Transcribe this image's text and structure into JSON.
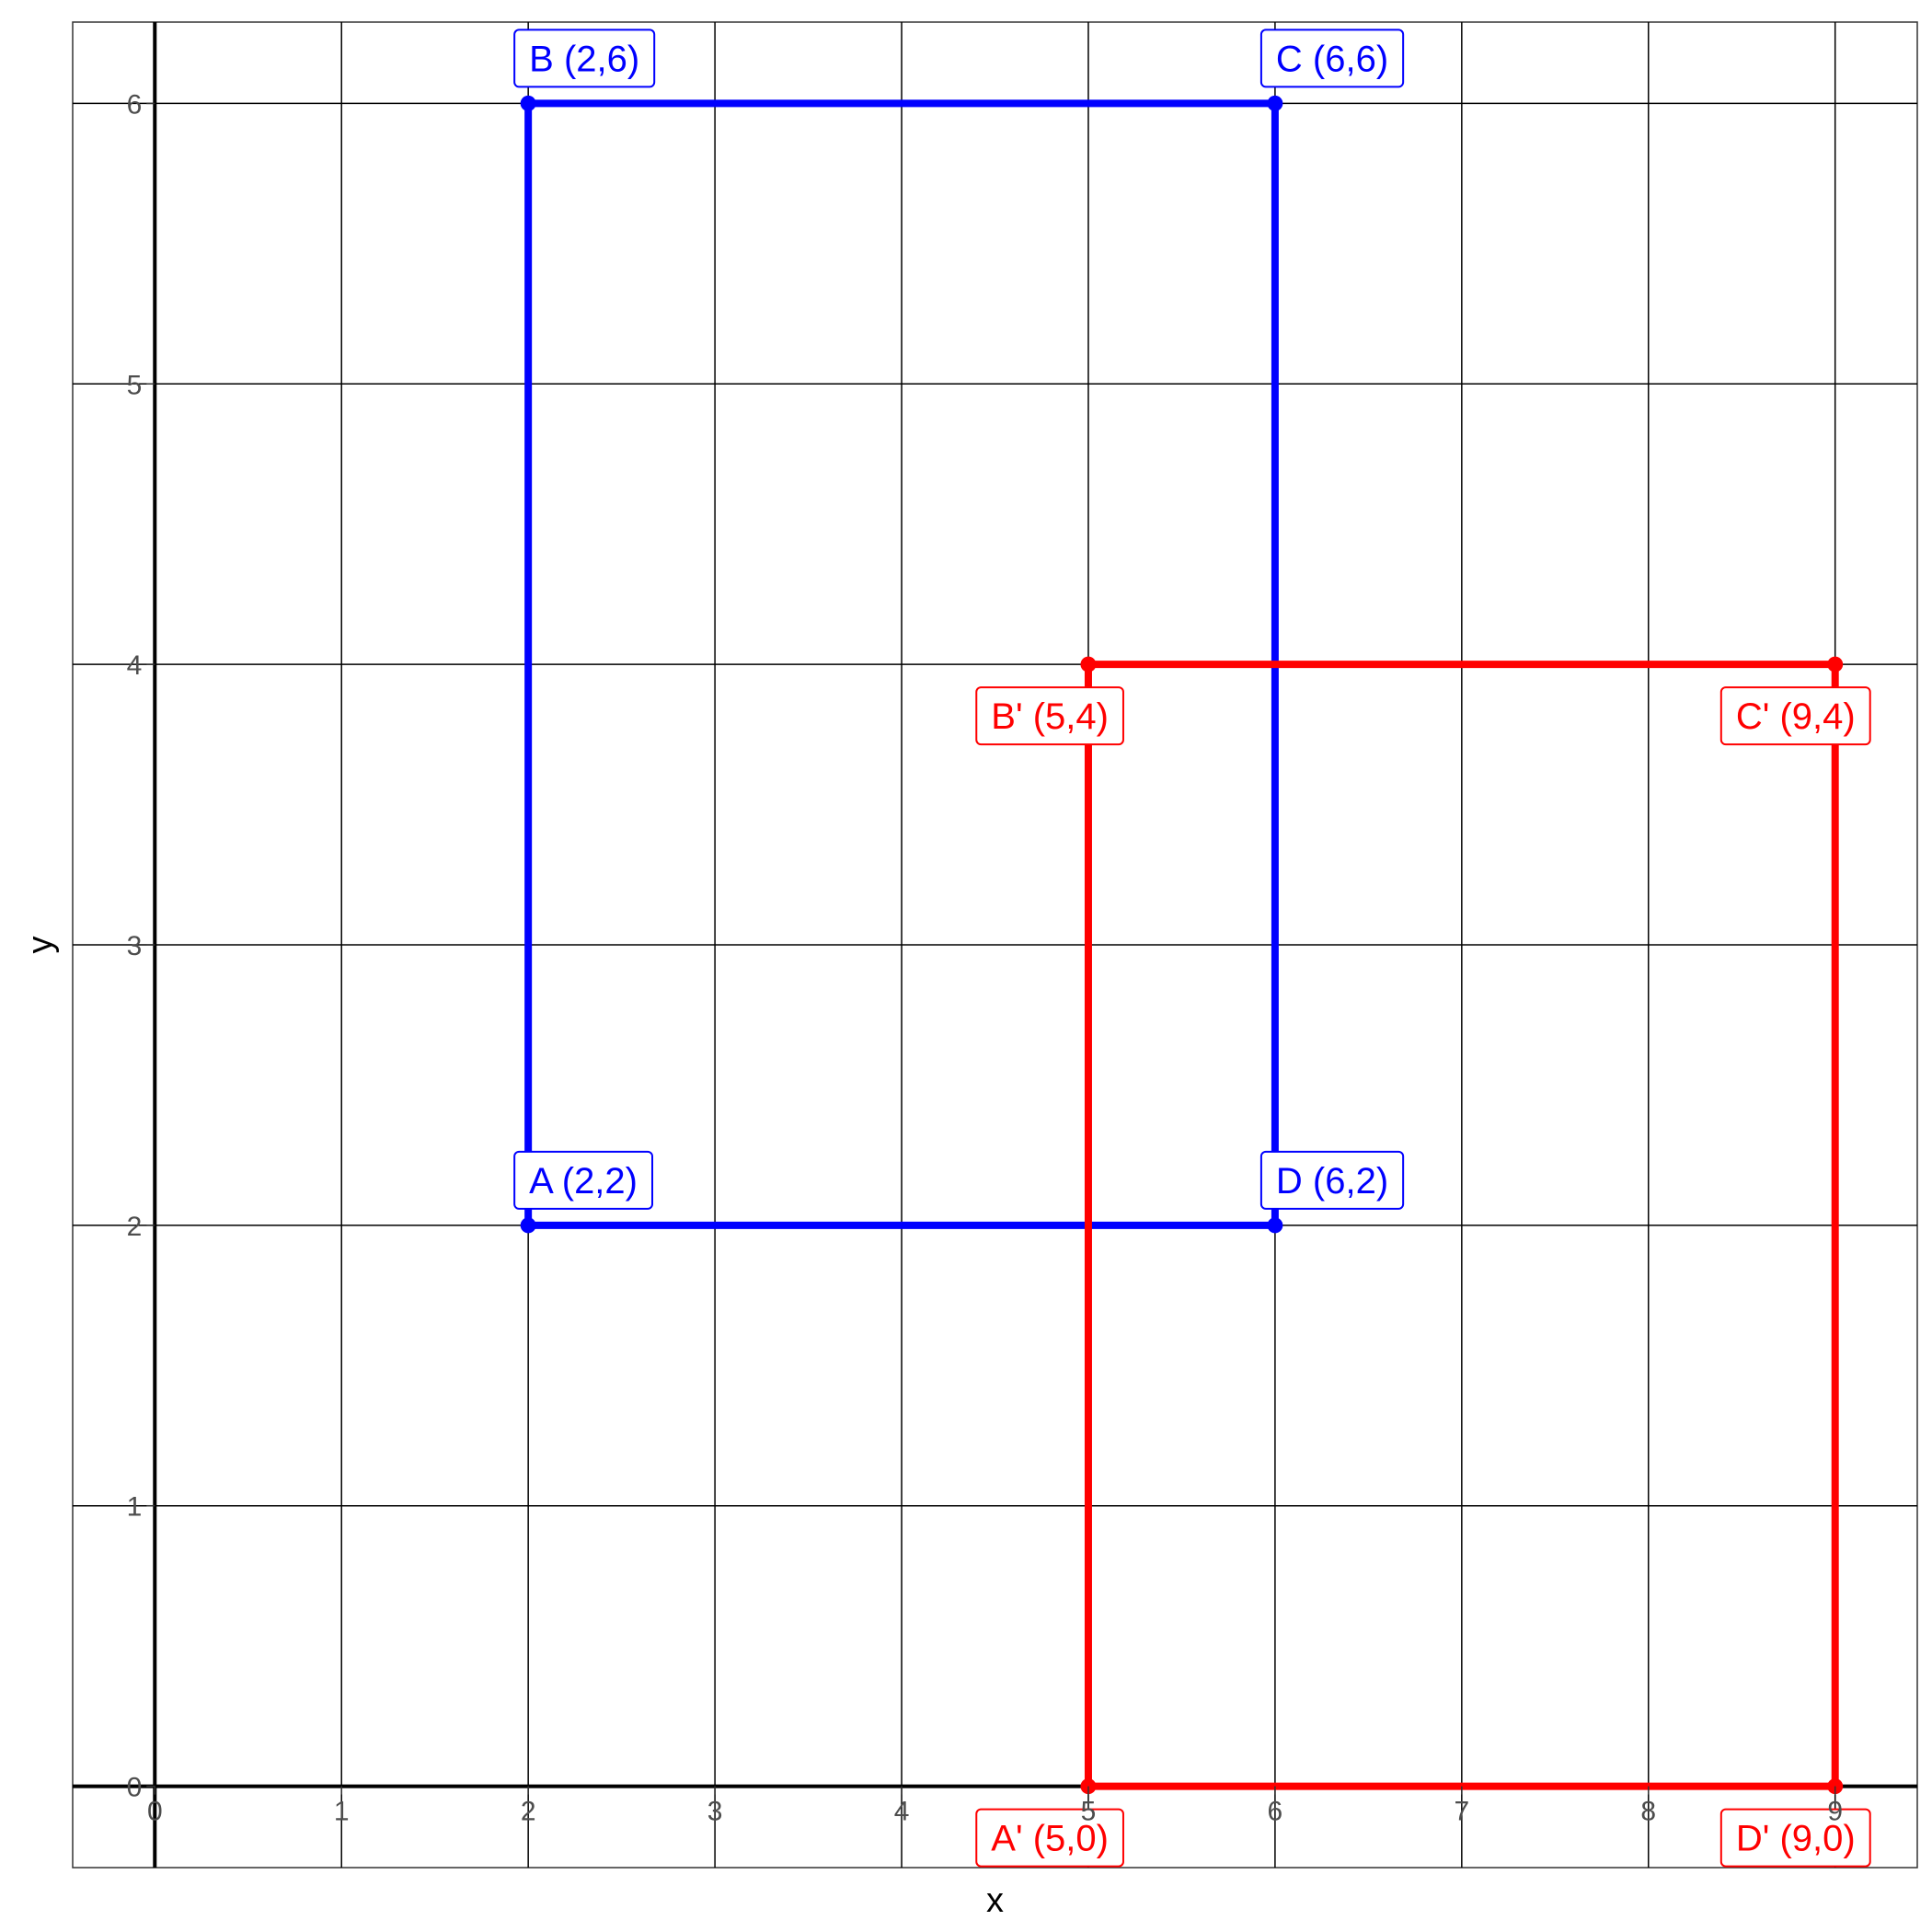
{
  "chart_data": {
    "type": "scatter",
    "title": "",
    "xlabel": "x",
    "ylabel": "y",
    "xlim": [
      -0.44,
      9.44
    ],
    "ylim": [
      -0.29,
      6.29
    ],
    "x_ticks": [
      0,
      1,
      2,
      3,
      4,
      5,
      6,
      7,
      8,
      9
    ],
    "y_ticks": [
      0,
      1,
      2,
      3,
      4,
      5,
      6
    ],
    "grid": true,
    "legend": "none",
    "series": [
      {
        "color": "#0000ff",
        "closed": true,
        "points": [
          {
            "x": 2,
            "y": 2,
            "label": "A (2,2)",
            "label_side": "above"
          },
          {
            "x": 2,
            "y": 6,
            "label": "B (2,6)",
            "label_side": "above"
          },
          {
            "x": 6,
            "y": 6,
            "label": "C (6,6)",
            "label_side": "above"
          },
          {
            "x": 6,
            "y": 2,
            "label": "D (6,2)",
            "label_side": "above"
          }
        ]
      },
      {
        "color": "#ff0000",
        "closed": true,
        "points": [
          {
            "x": 5,
            "y": 0,
            "label": "A' (5,0)",
            "label_side": "below"
          },
          {
            "x": 5,
            "y": 4,
            "label": "B' (5,4)",
            "label_side": "below"
          },
          {
            "x": 9,
            "y": 4,
            "label": "C' (9,4)",
            "label_side": "below"
          },
          {
            "x": 9,
            "y": 0,
            "label": "D' (9,0)",
            "label_side": "below"
          }
        ]
      }
    ]
  }
}
